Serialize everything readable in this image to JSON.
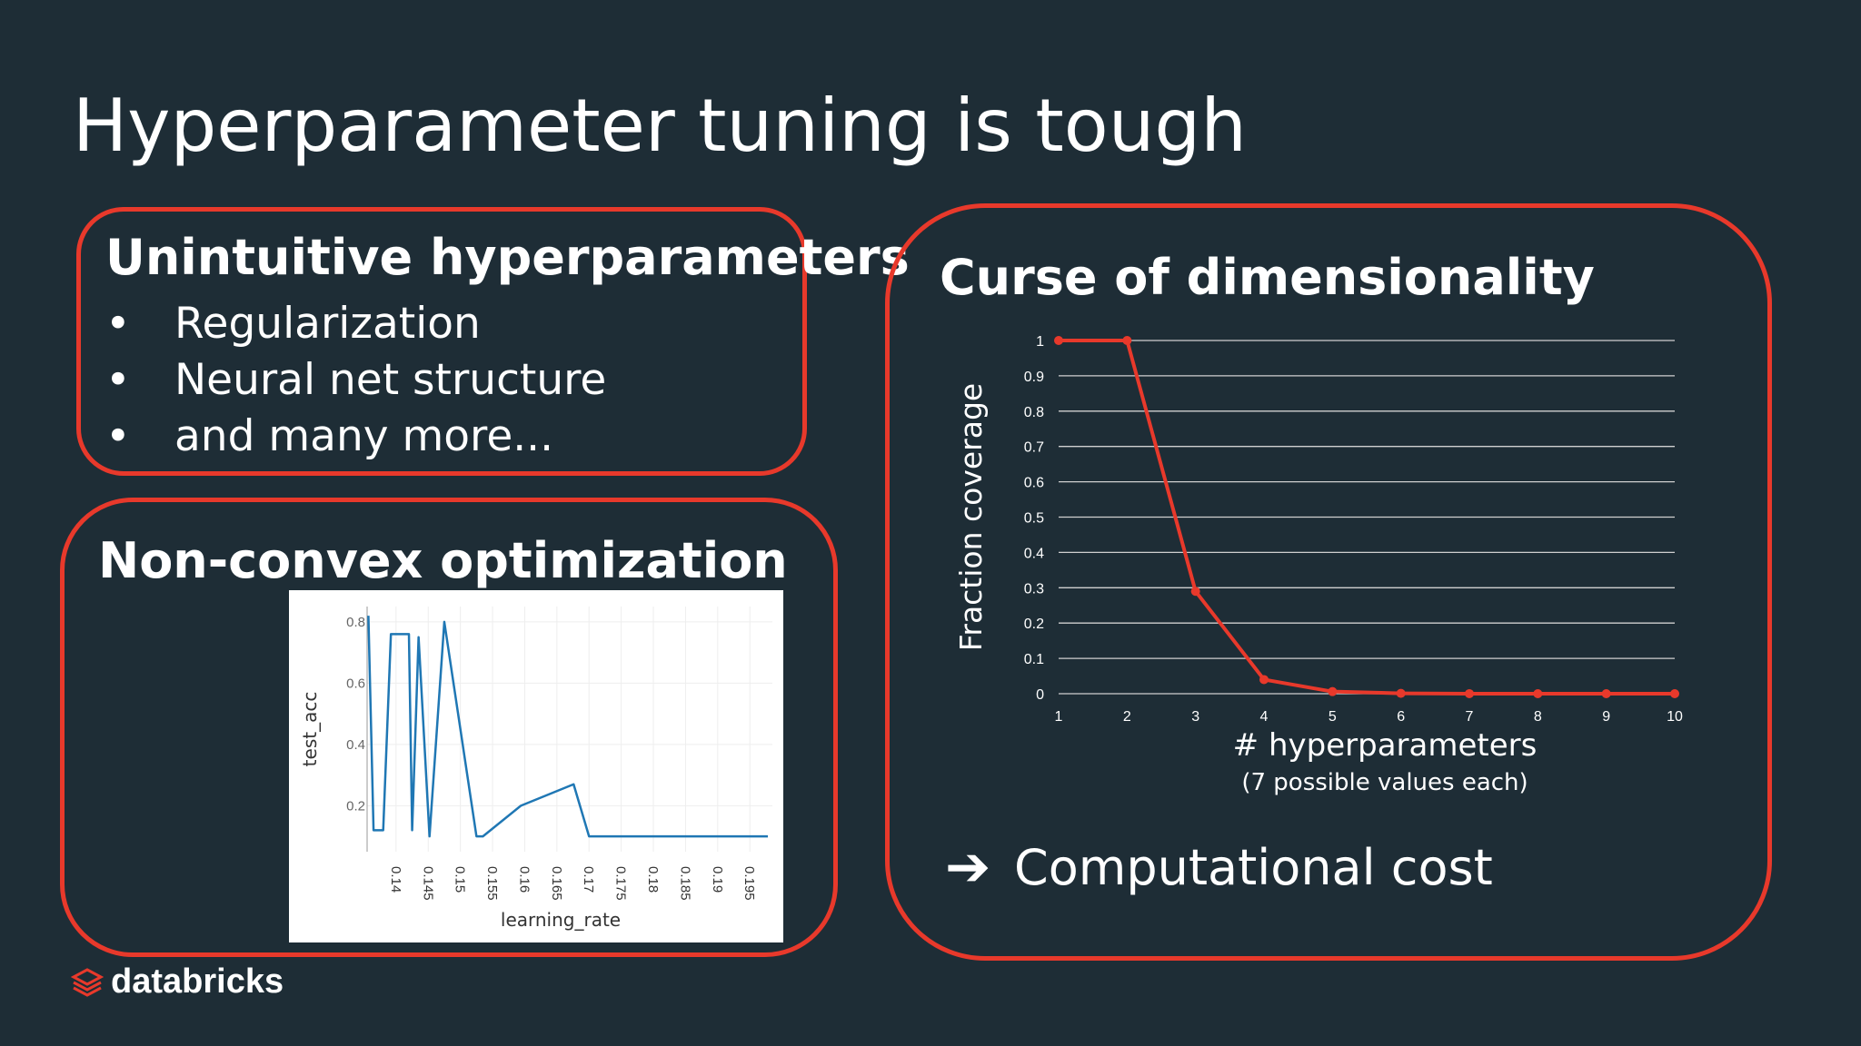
{
  "slide": {
    "title": "Hyperparameter tuning is tough",
    "accent_color": "#e8392b",
    "background_color": "#1e2d36"
  },
  "panel_unintuitive": {
    "heading": "Unintuitive hyperparameters",
    "bullet_symbol": "•",
    "items": [
      "Regularization",
      "Neural net structure",
      "and many more..."
    ]
  },
  "panel_nonconvex": {
    "heading": "Non-convex optimization"
  },
  "panel_curse": {
    "heading": "Curse of dimensionality",
    "result_arrow_icon": "arrow-right-icon",
    "result_text": "Computational cost"
  },
  "logo": {
    "text": "databricks",
    "icon": "databricks-stack-icon"
  },
  "chart_data": [
    {
      "type": "line",
      "x": [
        1,
        2,
        3,
        4,
        5,
        6,
        7,
        8,
        9,
        10
      ],
      "series": [
        {
          "values": [
            1,
            1,
            0.29,
            0.04,
            0.006,
            0.001,
            0.0001,
            0,
            0,
            0
          ],
          "color": "#e8392b"
        }
      ],
      "xlabel": "# hyperparameters",
      "xlabel_sub": "(7 possible values each)",
      "ylabel": "Fraction coverage",
      "xticks": [
        "1",
        "2",
        "3",
        "4",
        "5",
        "6",
        "7",
        "8",
        "9",
        "10"
      ],
      "yticks": [
        "0",
        "0.1",
        "0.2",
        "0.3",
        "0.4",
        "0.5",
        "0.6",
        "0.7",
        "0.8",
        "0.9",
        "1"
      ],
      "xlim": [
        1,
        10
      ],
      "ylim": [
        0,
        1
      ],
      "grid": true
    },
    {
      "type": "line",
      "x": [
        0.1357,
        0.1365,
        0.138,
        0.1392,
        0.142,
        0.1425,
        0.1435,
        0.1452,
        0.1475,
        0.1525,
        0.1535,
        0.1594,
        0.1676,
        0.17,
        0.17,
        0.1745,
        0.18,
        0.1878,
        0.1978
      ],
      "series": [
        {
          "values": [
            0.82,
            0.12,
            0.12,
            0.76,
            0.76,
            0.12,
            0.75,
            0.1,
            0.8,
            0.1,
            0.1,
            0.2,
            0.27,
            0.1,
            0.1,
            0.1,
            0.1,
            0.1,
            0.1
          ],
          "color": "#1f77b4"
        }
      ],
      "xlabel": "learning_rate",
      "ylabel": "test_acc",
      "xticks": [
        "0.14",
        "0.145",
        "0.15",
        "0.155",
        "0.16",
        "0.165",
        "0.17",
        "0.175",
        "0.18",
        "0.185",
        "0.19",
        "0.195"
      ],
      "yticks": [
        "0.2",
        "0.4",
        "0.6",
        "0.8"
      ],
      "xlim": [
        0.1355,
        0.1985
      ],
      "ylim": [
        0.05,
        0.85
      ],
      "grid": true
    }
  ]
}
